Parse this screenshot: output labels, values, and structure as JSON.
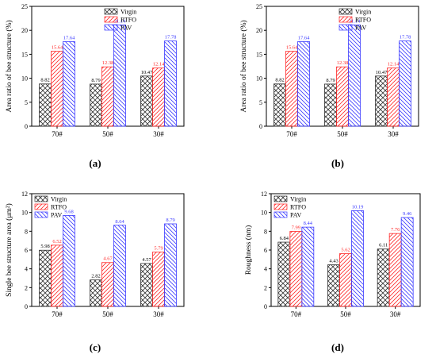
{
  "chart_data": [
    {
      "type": "bar",
      "caption": "(a)",
      "ylabel": "Area ratio of bee structure (%)",
      "xlabel": "",
      "categories": [
        "70#",
        "50#",
        "30#"
      ],
      "ylim": [
        0,
        25
      ],
      "yticks": [
        0,
        5,
        10,
        15,
        20,
        25
      ],
      "legend_position": "top-right",
      "series": [
        {
          "name": "Virgin",
          "values": [
            8.82,
            8.79,
            10.47
          ],
          "labels": [
            "8.82",
            "8.79",
            "10.47"
          ]
        },
        {
          "name": "RTFO",
          "values": [
            15.64,
            12.38,
            12.14
          ],
          "labels": [
            "15.64",
            "12.38",
            "12.14"
          ]
        },
        {
          "name": "PAV",
          "values": [
            17.64,
            21.14,
            17.78
          ],
          "labels": [
            "17.64",
            "21.14",
            "17.78"
          ]
        }
      ]
    },
    {
      "type": "bar",
      "caption": "(b)",
      "ylabel": "Area ratio of bee structure (%)",
      "xlabel": "",
      "categories": [
        "70#",
        "50#",
        "30#"
      ],
      "ylim": [
        0,
        25
      ],
      "yticks": [
        0,
        5,
        10,
        15,
        20,
        25
      ],
      "legend_position": "top-right",
      "series": [
        {
          "name": "Virgin",
          "values": [
            8.82,
            8.79,
            10.47
          ],
          "labels": [
            "8.82",
            "8.79",
            "10.47"
          ]
        },
        {
          "name": "RTFO",
          "values": [
            15.64,
            12.38,
            12.14
          ],
          "labels": [
            "15.64",
            "12.38",
            "12.14"
          ]
        },
        {
          "name": "PAV",
          "values": [
            17.64,
            21.14,
            17.78
          ],
          "labels": [
            "17.64",
            "21.14",
            "17.78"
          ]
        }
      ]
    },
    {
      "type": "bar",
      "caption": "(c)",
      "ylabel": "Single bee structure area (μm²)",
      "xlabel": "",
      "categories": [
        "70#",
        "50#",
        "30#"
      ],
      "ylim": [
        0,
        12
      ],
      "yticks": [
        0,
        2,
        4,
        6,
        8,
        10,
        12
      ],
      "legend_position": "top-left",
      "series": [
        {
          "name": "Virgin",
          "values": [
            5.98,
            2.82,
            4.57
          ],
          "labels": [
            "5.98",
            "2.82",
            "4.57"
          ]
        },
        {
          "name": "RTFO",
          "values": [
            6.52,
            4.67,
            5.79
          ],
          "labels": [
            "6.52",
            "4.67",
            "5.79"
          ]
        },
        {
          "name": "PAV",
          "values": [
            9.68,
            8.64,
            8.79
          ],
          "labels": [
            "9.68",
            "8.64",
            "8.79"
          ]
        }
      ]
    },
    {
      "type": "bar",
      "caption": "(d)",
      "ylabel": "Roughness (nm)",
      "xlabel": "",
      "categories": [
        "70#",
        "50#",
        "30#"
      ],
      "ylim": [
        0,
        12
      ],
      "yticks": [
        0,
        2,
        4,
        6,
        8,
        10,
        12
      ],
      "legend_position": "top-left",
      "series": [
        {
          "name": "Virgin",
          "values": [
            6.84,
            4.43,
            6.11
          ],
          "labels": [
            "6.84",
            "4.43",
            "6.11"
          ]
        },
        {
          "name": "RTFO",
          "values": [
            7.99,
            5.62,
            7.76
          ],
          "labels": [
            "7.99",
            "5.62",
            "7.76"
          ]
        },
        {
          "name": "PAV",
          "values": [
            8.44,
            10.19,
            9.46
          ],
          "labels": [
            "8.44",
            "10.19",
            "9.46"
          ]
        }
      ]
    }
  ],
  "colors": {
    "virgin": "#333333",
    "rtfo": "#ff2a2a",
    "pav": "#3b3bff",
    "axis": "#000000",
    "rtfo_label": "#ff2a2a",
    "pav_label": "#3b3bff"
  }
}
